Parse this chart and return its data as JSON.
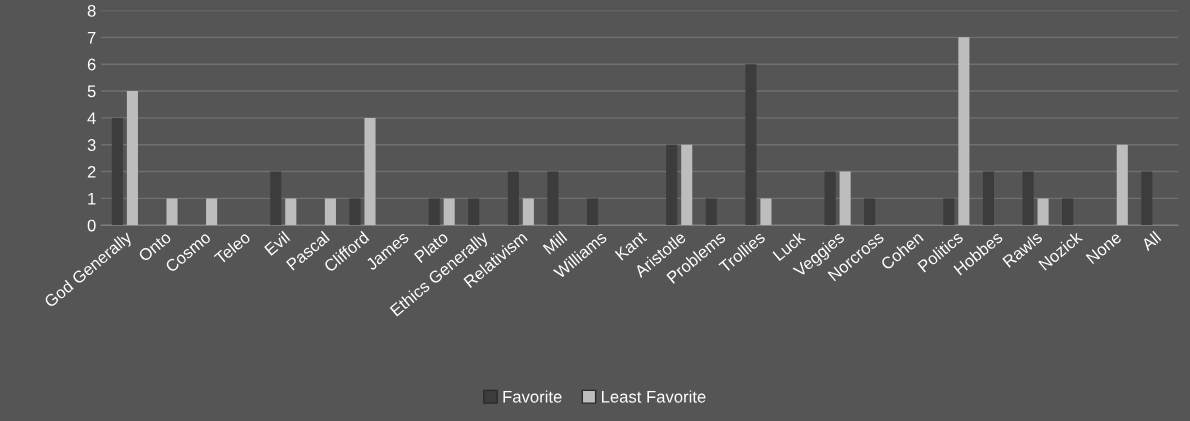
{
  "chart_data": {
    "type": "bar",
    "categories": [
      "God Generally",
      "Onto",
      "Cosmo",
      "Teleo",
      "Evil",
      "Pascal",
      "Clifford",
      "James",
      "Plato",
      "Ethics Generally",
      "Relativism",
      "Mill",
      "Williams",
      "Kant",
      "Aristotle",
      "Problems",
      "Trollies",
      "Luck",
      "Veggies",
      "Norcross",
      "Cohen",
      "Politics",
      "Hobbes",
      "Rawls",
      "Nozick",
      "None",
      "All"
    ],
    "series": [
      {
        "name": "Favorite",
        "color": "#3c3c3c",
        "values": [
          4,
          0,
          0,
          0,
          2,
          0,
          1,
          0,
          1,
          1,
          2,
          2,
          1,
          0,
          3,
          1,
          6,
          0,
          2,
          1,
          0,
          1,
          2,
          2,
          1,
          0,
          2
        ]
      },
      {
        "name": "Least Favorite",
        "color": "#bdbdbd",
        "values": [
          5,
          1,
          1,
          0,
          1,
          1,
          4,
          0,
          1,
          0,
          1,
          0,
          0,
          0,
          3,
          0,
          1,
          0,
          2,
          0,
          0,
          7,
          0,
          1,
          0,
          3,
          0
        ]
      }
    ],
    "ylim": [
      0,
      8
    ],
    "yticks": [
      0,
      1,
      2,
      3,
      4,
      5,
      6,
      7,
      8
    ],
    "grid": "y",
    "legend": "bottom"
  }
}
